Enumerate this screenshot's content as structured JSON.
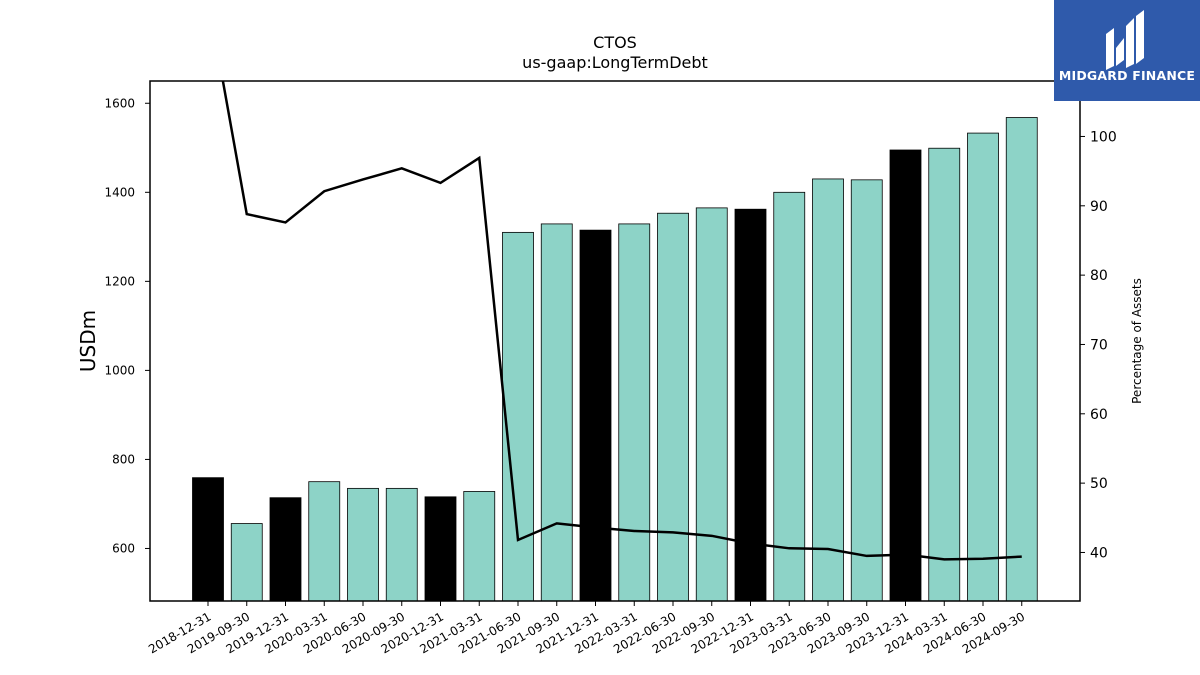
{
  "chart_data": {
    "type": "bar",
    "title": "CTOS",
    "subtitle": "us-gaap:LongTermDebt",
    "ylabel": "USDm",
    "y2label": "Percentage of Assets",
    "ylim": [
      482,
      1650
    ],
    "y2lim": [
      33,
      108
    ],
    "yticks": [
      600,
      800,
      1000,
      1200,
      1400,
      1600
    ],
    "y2ticks": [
      40,
      50,
      60,
      70,
      80,
      90,
      100
    ],
    "categories": [
      "2018-12-31",
      "2019-09-30",
      "2019-12-31",
      "2020-03-31",
      "2020-06-30",
      "2020-09-30",
      "2020-12-31",
      "2021-03-31",
      "2021-06-30",
      "2021-09-30",
      "2021-12-31",
      "2022-03-31",
      "2022-06-30",
      "2022-09-30",
      "2022-12-31",
      "2023-03-31",
      "2023-06-30",
      "2023-09-30",
      "2023-12-31",
      "2024-03-31",
      "2024-06-30",
      "2024-09-30"
    ],
    "values": [
      759,
      656,
      714,
      750,
      735,
      735,
      716,
      728,
      1310,
      1329,
      1315,
      1329,
      1353,
      1365,
      1362,
      1400,
      1430,
      1428,
      1495,
      1499,
      1533,
      1568
    ],
    "bar_colors": [
      "#000000",
      "#8dd3c7",
      "#000000",
      "#8dd3c7",
      "#8dd3c7",
      "#8dd3c7",
      "#000000",
      "#8dd3c7",
      "#8dd3c7",
      "#8dd3c7",
      "#000000",
      "#8dd3c7",
      "#8dd3c7",
      "#8dd3c7",
      "#000000",
      "#8dd3c7",
      "#8dd3c7",
      "#8dd3c7",
      "#000000",
      "#8dd3c7",
      "#8dd3c7",
      "#8dd3c7"
    ],
    "line_values": [
      120,
      88.8,
      87.6,
      92.1,
      93.8,
      95.4,
      93.3,
      96.9,
      41.8,
      44.2,
      43.6,
      43.1,
      42.9,
      42.4,
      41.3,
      40.6,
      40.5,
      39.5,
      39.7,
      39.0,
      39.1,
      39.4
    ],
    "line_color": "#000000",
    "grid": false
  },
  "logo": {
    "text": "MIDGARD FINANCE",
    "background": "#2f5aab"
  }
}
